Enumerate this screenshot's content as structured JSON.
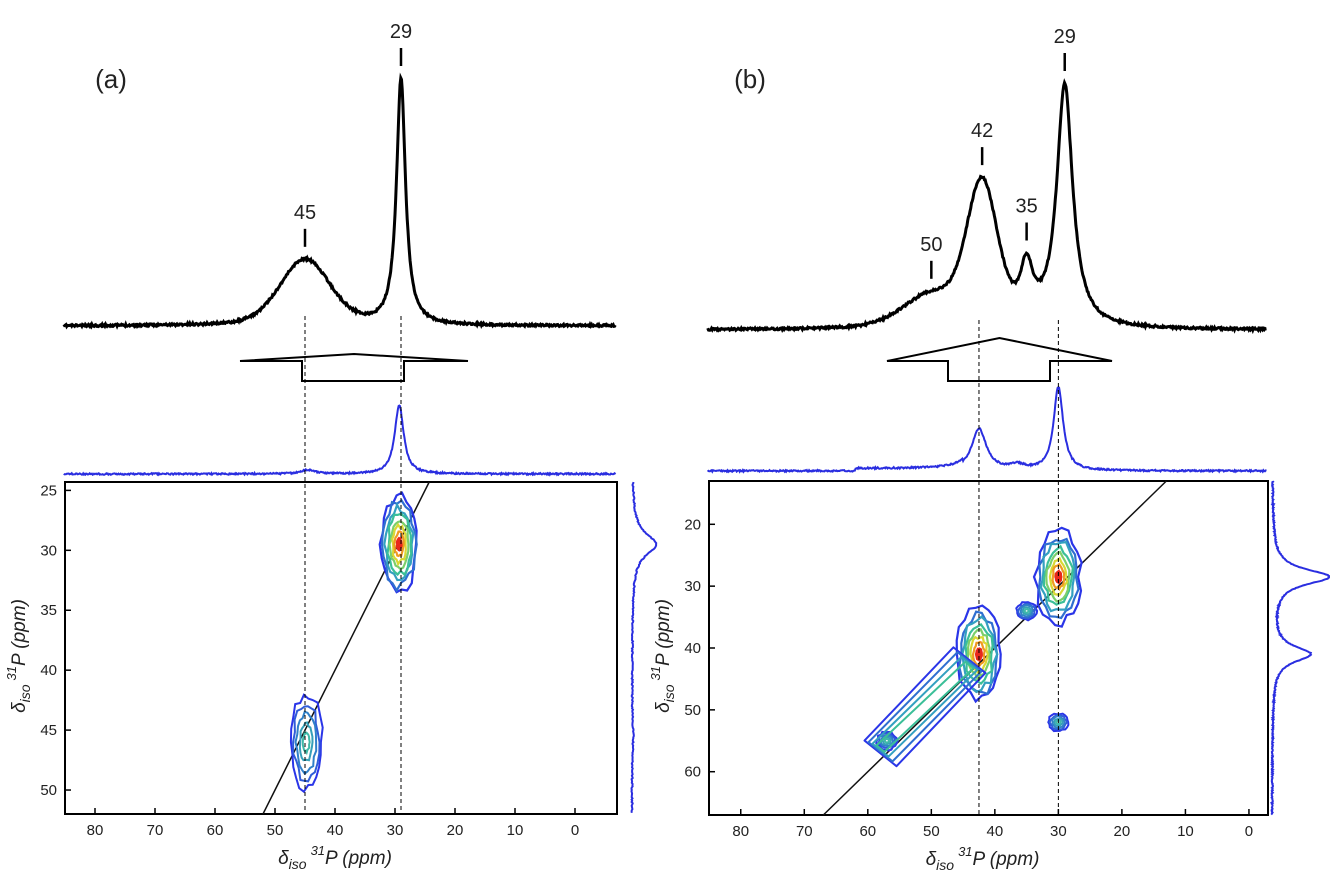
{
  "figure": {
    "panels": [
      {
        "label": "(a)",
        "xlabel": "δiso 31P (ppm)",
        "ylabel": "δiso 31P (ppm)"
      },
      {
        "label": "(b)",
        "xlabel": "δiso 31P (ppm)",
        "ylabel": "δiso 31P (ppm)"
      }
    ]
  },
  "chart_data": [
    {
      "type": "line",
      "panel": "(a)",
      "title": "",
      "xlabel": "δiso 31P (ppm)",
      "ylabel": "δiso 31P (ppm)",
      "x_reversed": true,
      "xlim": [
        85,
        -7
      ],
      "ylim_2d": [
        24.3,
        52
      ],
      "y_reversed": true,
      "xticks": [
        80,
        70,
        60,
        50,
        40,
        30,
        20,
        10,
        0
      ],
      "yticks": [
        25,
        30,
        35,
        40,
        45,
        50
      ],
      "top_spectrum_peaks": [
        {
          "position": 45,
          "relative_height": 0.27,
          "width": 5.5,
          "label": "45"
        },
        {
          "position": 29,
          "relative_height": 1.0,
          "width": 0.9,
          "label": "29"
        }
      ],
      "projection_peaks": [
        {
          "position": 44.5,
          "relative_height": 0.06
        },
        {
          "position": 29.3,
          "relative_height": 1.0
        }
      ],
      "side_projection_peaks": [
        {
          "position": 29.5,
          "relative_height": 1.0
        },
        {
          "position": 45.5,
          "relative_height": 0.05
        }
      ],
      "contour_peaks": [
        {
          "x": 29.3,
          "y": 29.5,
          "intensity": "high"
        },
        {
          "x": 44.8,
          "y": 46,
          "intensity": "low"
        }
      ],
      "diagonal": true,
      "dashed_guides": [
        45,
        29
      ]
    },
    {
      "type": "line",
      "panel": "(b)",
      "title": "",
      "xlabel": "δiso 31P (ppm)",
      "ylabel": "δiso 31P (ppm)",
      "x_reversed": true,
      "xlim": [
        85,
        -3
      ],
      "ylim_2d": [
        13,
        67
      ],
      "y_reversed": true,
      "xticks": [
        80,
        70,
        60,
        50,
        40,
        30,
        20,
        10,
        0
      ],
      "yticks": [
        20,
        30,
        40,
        50,
        60
      ],
      "top_spectrum_peaks": [
        {
          "position": 50,
          "relative_height": 0.13,
          "width": 6,
          "label": "50"
        },
        {
          "position": 42,
          "relative_height": 0.58,
          "width": 3.2,
          "label": "42"
        },
        {
          "position": 35,
          "relative_height": 0.22,
          "width": 1.2,
          "label": "35"
        },
        {
          "position": 29,
          "relative_height": 1.0,
          "width": 1.5,
          "label": "29"
        }
      ],
      "projection_peaks": [
        {
          "position": 42.5,
          "relative_height": 0.5
        },
        {
          "position": 36.5,
          "relative_height": 0.06
        },
        {
          "position": 30,
          "relative_height": 1.0
        }
      ],
      "side_projection_peaks": [
        {
          "position": 28.5,
          "relative_height": 1.0
        },
        {
          "position": 41,
          "relative_height": 0.67
        }
      ],
      "contour_peaks": [
        {
          "x": 30,
          "y": 28.5,
          "intensity": "high"
        },
        {
          "x": 42.5,
          "y": 41,
          "intensity": "high"
        },
        {
          "x": 57,
          "y": 55,
          "intensity": "low"
        },
        {
          "x": 30,
          "y": 52,
          "intensity": "low"
        },
        {
          "x": 35,
          "y": 34,
          "intensity": "low"
        }
      ],
      "diagonal": true,
      "dashed_guides": [
        42.5,
        30
      ]
    }
  ]
}
